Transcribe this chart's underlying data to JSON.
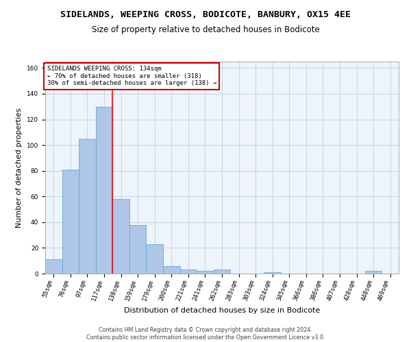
{
  "title": "SIDELANDS, WEEPING CROSS, BODICOTE, BANBURY, OX15 4EE",
  "subtitle": "Size of property relative to detached houses in Bodicote",
  "xlabel": "Distribution of detached houses by size in Bodicote",
  "ylabel": "Number of detached properties",
  "bar_color": "#aec6e8",
  "bar_edge_color": "#5a9fd4",
  "grid_color": "#c8d8e8",
  "background_color": "#eef4fb",
  "categories": [
    "55sqm",
    "76sqm",
    "97sqm",
    "117sqm",
    "138sqm",
    "159sqm",
    "179sqm",
    "200sqm",
    "221sqm",
    "241sqm",
    "262sqm",
    "283sqm",
    "303sqm",
    "324sqm",
    "345sqm",
    "366sqm",
    "386sqm",
    "407sqm",
    "428sqm",
    "448sqm",
    "469sqm"
  ],
  "values": [
    11,
    81,
    105,
    130,
    58,
    38,
    23,
    6,
    3,
    2,
    3,
    0,
    0,
    1,
    0,
    0,
    0,
    0,
    0,
    2,
    0
  ],
  "red_line_x": 3.5,
  "annotation_text": "SIDELANDS WEEPING CROSS: 134sqm\n← 70% of detached houses are smaller (318)\n30% of semi-detached houses are larger (138) →",
  "annotation_box_color": "#ffffff",
  "annotation_box_edge": "#cc0000",
  "footnote": "Contains HM Land Registry data © Crown copyright and database right 2024.\nContains public sector information licensed under the Open Government Licence v3.0.",
  "ylim": [
    0,
    165
  ],
  "yticks": [
    0,
    20,
    40,
    60,
    80,
    100,
    120,
    140,
    160
  ],
  "title_fontsize": 9.5,
  "subtitle_fontsize": 8.5,
  "xlabel_fontsize": 8,
  "ylabel_fontsize": 8,
  "tick_fontsize": 6.5,
  "annotation_fontsize": 6.5,
  "footnote_fontsize": 5.8
}
